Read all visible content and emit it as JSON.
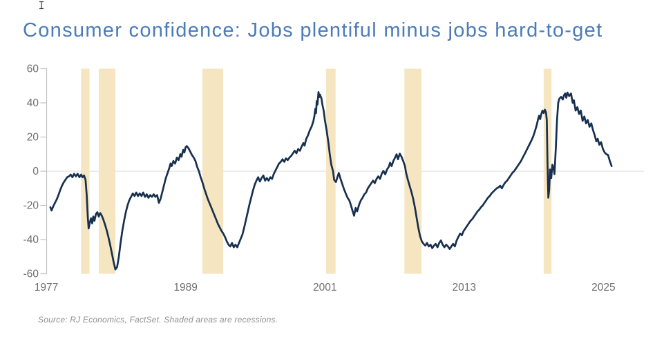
{
  "page": {
    "title": "Consumer confidence: Jobs plentiful minus jobs hard-to-get",
    "source_note": "Source: RJ Economics, FactSet. Shaded areas are recessions."
  },
  "colors": {
    "title_text": "#4b7cba",
    "series_line": "#18304f",
    "recession_band": "#f5e5c0",
    "axis_line": "#c2c2c2",
    "zero_gridline": "#d8d8d8",
    "tick_label": "#6e6e6e",
    "source_text": "#8f8f8f",
    "background": "#ffffff"
  },
  "chart_data": {
    "type": "line",
    "title": "Consumer confidence: Jobs plentiful minus jobs hard-to-get",
    "series_name": "Jobs plentiful minus jobs hard-to-get (pct pts)",
    "xlabel": "",
    "ylabel": "",
    "ylim": [
      -60,
      60
    ],
    "xlim": [
      1977,
      2026.3
    ],
    "y_ticks": [
      60,
      40,
      20,
      0,
      -20,
      -40,
      -60
    ],
    "x_ticks": [
      1977,
      1989,
      2001,
      2013,
      2025
    ],
    "grid": "zero-line-only",
    "legend": "none",
    "annotation": "Shaded areas are recessions",
    "recessions": [
      [
        1980.0,
        1980.72
      ],
      [
        1981.52,
        1982.95
      ],
      [
        1990.45,
        1992.25
      ],
      [
        2001.1,
        2001.92
      ],
      [
        2007.85,
        2009.32
      ],
      [
        2019.85,
        2020.52
      ]
    ],
    "points": [
      [
        1977.35,
        -21
      ],
      [
        1977.45,
        -23
      ],
      [
        1977.6,
        -20.5
      ],
      [
        1977.75,
        -18.5
      ],
      [
        1977.9,
        -16.5
      ],
      [
        1978.05,
        -14
      ],
      [
        1978.2,
        -11
      ],
      [
        1978.35,
        -8.5
      ],
      [
        1978.5,
        -6.5
      ],
      [
        1978.65,
        -5
      ],
      [
        1978.8,
        -3.5
      ],
      [
        1978.95,
        -3
      ],
      [
        1979.1,
        -2
      ],
      [
        1979.25,
        -3.5
      ],
      [
        1979.4,
        -1.5
      ],
      [
        1979.55,
        -3
      ],
      [
        1979.7,
        -1.5
      ],
      [
        1979.85,
        -3.5
      ],
      [
        1980.0,
        -2
      ],
      [
        1980.12,
        -3.5
      ],
      [
        1980.25,
        -2.5
      ],
      [
        1980.38,
        -5
      ],
      [
        1980.48,
        -14
      ],
      [
        1980.58,
        -27
      ],
      [
        1980.65,
        -33.5
      ],
      [
        1980.75,
        -30
      ],
      [
        1980.85,
        -27.5
      ],
      [
        1980.95,
        -30.5
      ],
      [
        1981.05,
        -26.5
      ],
      [
        1981.15,
        -29
      ],
      [
        1981.28,
        -25
      ],
      [
        1981.4,
        -24
      ],
      [
        1981.52,
        -26.5
      ],
      [
        1981.65,
        -24.5
      ],
      [
        1981.78,
        -26
      ],
      [
        1981.9,
        -28
      ],
      [
        1982.05,
        -31
      ],
      [
        1982.2,
        -34.5
      ],
      [
        1982.35,
        -38.5
      ],
      [
        1982.5,
        -43
      ],
      [
        1982.65,
        -48
      ],
      [
        1982.8,
        -53
      ],
      [
        1982.95,
        -57.5
      ],
      [
        1983.1,
        -56
      ],
      [
        1983.25,
        -50
      ],
      [
        1983.4,
        -42
      ],
      [
        1983.55,
        -35
      ],
      [
        1983.7,
        -29
      ],
      [
        1983.85,
        -24
      ],
      [
        1984.0,
        -20
      ],
      [
        1984.15,
        -17
      ],
      [
        1984.3,
        -15
      ],
      [
        1984.45,
        -13
      ],
      [
        1984.6,
        -14.5
      ],
      [
        1984.75,
        -12.5
      ],
      [
        1984.9,
        -14.5
      ],
      [
        1985.05,
        -13
      ],
      [
        1985.2,
        -14.5
      ],
      [
        1985.35,
        -12.5
      ],
      [
        1985.5,
        -15
      ],
      [
        1985.65,
        -13.5
      ],
      [
        1985.8,
        -15.5
      ],
      [
        1985.95,
        -14
      ],
      [
        1986.1,
        -15
      ],
      [
        1986.25,
        -13.5
      ],
      [
        1986.4,
        -15
      ],
      [
        1986.55,
        -14
      ],
      [
        1986.7,
        -18.5
      ],
      [
        1986.85,
        -16
      ],
      [
        1987.0,
        -12
      ],
      [
        1987.15,
        -8
      ],
      [
        1987.3,
        -4
      ],
      [
        1987.45,
        -1
      ],
      [
        1987.6,
        2
      ],
      [
        1987.7,
        4.5
      ],
      [
        1987.8,
        3
      ],
      [
        1987.95,
        6
      ],
      [
        1988.1,
        4.5
      ],
      [
        1988.25,
        8
      ],
      [
        1988.4,
        6.5
      ],
      [
        1988.55,
        10
      ],
      [
        1988.65,
        8.5
      ],
      [
        1988.8,
        12.5
      ],
      [
        1988.9,
        11
      ],
      [
        1989.0,
        14
      ],
      [
        1989.1,
        14.7
      ],
      [
        1989.25,
        13.5
      ],
      [
        1989.4,
        11.5
      ],
      [
        1989.55,
        9.5
      ],
      [
        1989.7,
        8
      ],
      [
        1989.85,
        6
      ],
      [
        1990.0,
        2.5
      ],
      [
        1990.15,
        0
      ],
      [
        1990.3,
        -3.5
      ],
      [
        1990.45,
        -6.5
      ],
      [
        1990.6,
        -10
      ],
      [
        1990.75,
        -13
      ],
      [
        1990.9,
        -16
      ],
      [
        1991.05,
        -18.5
      ],
      [
        1991.2,
        -21
      ],
      [
        1991.35,
        -23.5
      ],
      [
        1991.5,
        -26
      ],
      [
        1991.65,
        -28.5
      ],
      [
        1991.8,
        -31
      ],
      [
        1991.95,
        -33
      ],
      [
        1992.1,
        -35
      ],
      [
        1992.25,
        -36.5
      ],
      [
        1992.4,
        -38.5
      ],
      [
        1992.55,
        -41
      ],
      [
        1992.7,
        -43
      ],
      [
        1992.85,
        -44
      ],
      [
        1993.0,
        -42
      ],
      [
        1993.15,
        -44.5
      ],
      [
        1993.3,
        -43
      ],
      [
        1993.45,
        -44.5
      ],
      [
        1993.6,
        -42
      ],
      [
        1993.75,
        -39.5
      ],
      [
        1993.9,
        -37
      ],
      [
        1994.05,
        -33
      ],
      [
        1994.2,
        -28.5
      ],
      [
        1994.35,
        -24
      ],
      [
        1994.5,
        -19.5
      ],
      [
        1994.65,
        -15.5
      ],
      [
        1994.8,
        -11.5
      ],
      [
        1994.95,
        -8
      ],
      [
        1995.1,
        -5.5
      ],
      [
        1995.25,
        -3.5
      ],
      [
        1995.4,
        -6
      ],
      [
        1995.55,
        -4
      ],
      [
        1995.7,
        -2.5
      ],
      [
        1995.85,
        -5.5
      ],
      [
        1996.0,
        -4
      ],
      [
        1996.15,
        -5.5
      ],
      [
        1996.3,
        -3.5
      ],
      [
        1996.45,
        -4.5
      ],
      [
        1996.6,
        -1.5
      ],
      [
        1996.75,
        0.5
      ],
      [
        1996.9,
        2.5
      ],
      [
        1997.05,
        4.5
      ],
      [
        1997.2,
        5.5
      ],
      [
        1997.35,
        7
      ],
      [
        1997.5,
        5.5
      ],
      [
        1997.65,
        7.5
      ],
      [
        1997.8,
        6.5
      ],
      [
        1997.95,
        8
      ],
      [
        1998.1,
        9
      ],
      [
        1998.25,
        10.5
      ],
      [
        1998.4,
        12
      ],
      [
        1998.55,
        10.5
      ],
      [
        1998.7,
        13
      ],
      [
        1998.85,
        12
      ],
      [
        1999.0,
        14.5
      ],
      [
        1999.15,
        16.5
      ],
      [
        1999.25,
        15
      ],
      [
        1999.4,
        19
      ],
      [
        1999.55,
        21
      ],
      [
        1999.7,
        24
      ],
      [
        1999.85,
        26
      ],
      [
        2000.0,
        29
      ],
      [
        2000.1,
        32.5
      ],
      [
        2000.18,
        36.5
      ],
      [
        2000.24,
        34
      ],
      [
        2000.3,
        41
      ],
      [
        2000.36,
        39
      ],
      [
        2000.45,
        46.3
      ],
      [
        2000.52,
        43.4
      ],
      [
        2000.58,
        44.8
      ],
      [
        2000.7,
        42.6
      ],
      [
        2000.8,
        38.6
      ],
      [
        2000.9,
        35.4
      ],
      [
        2001.0,
        30
      ],
      [
        2001.15,
        24
      ],
      [
        2001.3,
        17
      ],
      [
        2001.42,
        10
      ],
      [
        2001.55,
        4
      ],
      [
        2001.7,
        0
      ],
      [
        2001.8,
        -5
      ],
      [
        2001.95,
        -6.3
      ],
      [
        2002.1,
        -3
      ],
      [
        2002.2,
        -1
      ],
      [
        2002.35,
        -4.5
      ],
      [
        2002.5,
        -7.5
      ],
      [
        2002.65,
        -10.5
      ],
      [
        2002.8,
        -13
      ],
      [
        2002.95,
        -15.5
      ],
      [
        2003.1,
        -17
      ],
      [
        2003.25,
        -20
      ],
      [
        2003.4,
        -23.5
      ],
      [
        2003.52,
        -26
      ],
      [
        2003.65,
        -21.5
      ],
      [
        2003.78,
        -23.5
      ],
      [
        2003.95,
        -19.5
      ],
      [
        2004.1,
        -17
      ],
      [
        2004.25,
        -15.5
      ],
      [
        2004.4,
        -13.5
      ],
      [
        2004.55,
        -12.5
      ],
      [
        2004.7,
        -10
      ],
      [
        2004.85,
        -8.5
      ],
      [
        2005.0,
        -7
      ],
      [
        2005.15,
        -5.5
      ],
      [
        2005.3,
        -7
      ],
      [
        2005.45,
        -4.5
      ],
      [
        2005.6,
        -3
      ],
      [
        2005.75,
        -4.5
      ],
      [
        2005.9,
        -1.5
      ],
      [
        2006.05,
        0.2
      ],
      [
        2006.2,
        -1.8
      ],
      [
        2006.35,
        1
      ],
      [
        2006.5,
        2.5
      ],
      [
        2006.62,
        5
      ],
      [
        2006.75,
        3
      ],
      [
        2006.9,
        6
      ],
      [
        2007.05,
        8
      ],
      [
        2007.18,
        9.9
      ],
      [
        2007.3,
        7
      ],
      [
        2007.45,
        10.3
      ],
      [
        2007.6,
        8.5
      ],
      [
        2007.75,
        5.9
      ],
      [
        2007.9,
        3
      ],
      [
        2008.0,
        -1
      ],
      [
        2008.15,
        -5
      ],
      [
        2008.3,
        -8.5
      ],
      [
        2008.45,
        -12
      ],
      [
        2008.6,
        -16
      ],
      [
        2008.75,
        -21
      ],
      [
        2008.9,
        -27
      ],
      [
        2009.05,
        -33
      ],
      [
        2009.2,
        -38
      ],
      [
        2009.35,
        -41
      ],
      [
        2009.5,
        -42.5
      ],
      [
        2009.65,
        -43.5
      ],
      [
        2009.8,
        -42
      ],
      [
        2009.95,
        -44
      ],
      [
        2010.1,
        -43
      ],
      [
        2010.25,
        -45
      ],
      [
        2010.4,
        -43.5
      ],
      [
        2010.55,
        -42.5
      ],
      [
        2010.7,
        -44.5
      ],
      [
        2010.85,
        -42
      ],
      [
        2011.0,
        -40.5
      ],
      [
        2011.15,
        -43
      ],
      [
        2011.3,
        -44.5
      ],
      [
        2011.45,
        -43
      ],
      [
        2011.6,
        -44
      ],
      [
        2011.75,
        -45.5
      ],
      [
        2011.9,
        -44
      ],
      [
        2012.05,
        -42.5
      ],
      [
        2012.2,
        -44
      ],
      [
        2012.35,
        -40.5
      ],
      [
        2012.5,
        -38.5
      ],
      [
        2012.65,
        -36.5
      ],
      [
        2012.8,
        -37.5
      ],
      [
        2012.95,
        -35
      ],
      [
        2013.1,
        -33.5
      ],
      [
        2013.25,
        -32
      ],
      [
        2013.4,
        -30.5
      ],
      [
        2013.55,
        -29
      ],
      [
        2013.7,
        -28
      ],
      [
        2013.85,
        -26.5
      ],
      [
        2014.0,
        -25
      ],
      [
        2014.15,
        -23.5
      ],
      [
        2014.3,
        -22.5
      ],
      [
        2014.45,
        -21
      ],
      [
        2014.6,
        -20
      ],
      [
        2014.75,
        -18.5
      ],
      [
        2014.9,
        -17
      ],
      [
        2015.05,
        -15.5
      ],
      [
        2015.2,
        -14.5
      ],
      [
        2015.35,
        -13
      ],
      [
        2015.5,
        -12
      ],
      [
        2015.65,
        -11
      ],
      [
        2015.8,
        -10
      ],
      [
        2015.95,
        -9.5
      ],
      [
        2016.1,
        -8.5
      ],
      [
        2016.25,
        -10
      ],
      [
        2016.4,
        -8
      ],
      [
        2016.55,
        -6.5
      ],
      [
        2016.7,
        -5.5
      ],
      [
        2016.85,
        -4
      ],
      [
        2017.0,
        -2.5
      ],
      [
        2017.15,
        -1
      ],
      [
        2017.3,
        0
      ],
      [
        2017.45,
        1.5
      ],
      [
        2017.6,
        3
      ],
      [
        2017.75,
        4.5
      ],
      [
        2017.9,
        6
      ],
      [
        2018.05,
        8
      ],
      [
        2018.2,
        10
      ],
      [
        2018.35,
        12
      ],
      [
        2018.5,
        14
      ],
      [
        2018.65,
        16
      ],
      [
        2018.8,
        18
      ],
      [
        2018.95,
        20.5
      ],
      [
        2019.1,
        23.5
      ],
      [
        2019.25,
        27
      ],
      [
        2019.35,
        30
      ],
      [
        2019.45,
        32.5
      ],
      [
        2019.55,
        30.5
      ],
      [
        2019.65,
        33.5
      ],
      [
        2019.75,
        35.5
      ],
      [
        2019.85,
        34
      ],
      [
        2019.95,
        36
      ],
      [
        2020.05,
        34.5
      ],
      [
        2020.12,
        30
      ],
      [
        2020.18,
        5
      ],
      [
        2020.25,
        -15.5
      ],
      [
        2020.32,
        -11
      ],
      [
        2020.4,
        1
      ],
      [
        2020.5,
        -4
      ],
      [
        2020.6,
        3.8
      ],
      [
        2020.7,
        2
      ],
      [
        2020.78,
        -1.7
      ],
      [
        2020.9,
        14
      ],
      [
        2021.0,
        30
      ],
      [
        2021.1,
        40
      ],
      [
        2021.2,
        42.5
      ],
      [
        2021.35,
        43.5
      ],
      [
        2021.5,
        42
      ],
      [
        2021.6,
        44.5
      ],
      [
        2021.7,
        45.5
      ],
      [
        2021.8,
        43
      ],
      [
        2021.9,
        46
      ],
      [
        2022.05,
        44
      ],
      [
        2022.2,
        45.5
      ],
      [
        2022.35,
        40
      ],
      [
        2022.45,
        41.5
      ],
      [
        2022.6,
        35.5
      ],
      [
        2022.75,
        37.5
      ],
      [
        2022.9,
        33.5
      ],
      [
        2023.05,
        35.5
      ],
      [
        2023.2,
        29.5
      ],
      [
        2023.35,
        32
      ],
      [
        2023.5,
        28
      ],
      [
        2023.65,
        30
      ],
      [
        2023.8,
        26
      ],
      [
        2023.95,
        28
      ],
      [
        2024.1,
        24
      ],
      [
        2024.25,
        21
      ],
      [
        2024.38,
        17.5
      ],
      [
        2024.5,
        19
      ],
      [
        2024.65,
        15.5
      ],
      [
        2024.8,
        17
      ],
      [
        2024.95,
        13
      ],
      [
        2025.1,
        11
      ],
      [
        2025.25,
        10
      ],
      [
        2025.4,
        9.5
      ],
      [
        2025.55,
        6
      ],
      [
        2025.7,
        3
      ]
    ]
  }
}
